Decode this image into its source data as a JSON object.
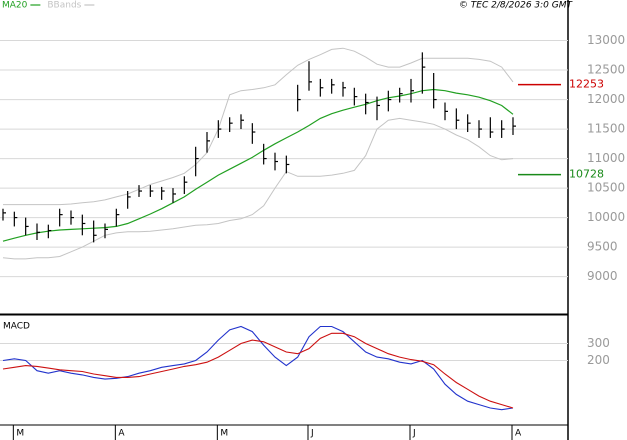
{
  "chart_data": [
    {
      "type": "ohlc",
      "source": "© TEC 2/8/2026 3:0 GMT",
      "ylim": [
        8400,
        13450
      ],
      "yticks": [
        9000,
        9500,
        10000,
        10500,
        11000,
        11500,
        12000,
        12500,
        13000
      ],
      "grid": true,
      "bar_color": "#000000",
      "high": [
        10150,
        10100,
        10000,
        9900,
        9880,
        10150,
        10120,
        10050,
        9950,
        9900,
        10150,
        10450,
        10550,
        10550,
        10520,
        10500,
        10700,
        11200,
        11450,
        11650,
        11700,
        11750,
        11600,
        11250,
        11100,
        11050,
        12250,
        12650,
        12350,
        12350,
        12300,
        12200,
        12100,
        12050,
        12150,
        12200,
        12350,
        12800,
        12450,
        11950,
        11850,
        11750,
        11650,
        11700,
        11650,
        11700
      ],
      "low": [
        9950,
        9850,
        9700,
        9620,
        9650,
        9850,
        9880,
        9700,
        9580,
        9650,
        9850,
        10150,
        10350,
        10350,
        10300,
        10250,
        10400,
        10700,
        11100,
        11350,
        11450,
        11500,
        11250,
        10900,
        10800,
        10750,
        11800,
        12150,
        12050,
        12100,
        12050,
        11900,
        11750,
        11650,
        11800,
        11950,
        11950,
        12100,
        11850,
        11650,
        11500,
        11450,
        11350,
        11350,
        11350,
        11400
      ],
      "close": [
        10080,
        10000,
        9850,
        9750,
        9780,
        10050,
        10000,
        9900,
        9700,
        9800,
        10050,
        10350,
        10450,
        10450,
        10450,
        10400,
        10600,
        11000,
        11300,
        11500,
        11600,
        11650,
        11450,
        11000,
        10950,
        10900,
        12000,
        12300,
        12200,
        12250,
        12200,
        12050,
        11950,
        11900,
        12000,
        12100,
        12150,
        12550,
        12000,
        11800,
        11650,
        11600,
        11500,
        11450,
        11500,
        11550
      ],
      "series": [
        {
          "name": "MA20",
          "color": "#22a022",
          "values": [
            9600,
            9650,
            9700,
            9740,
            9770,
            9790,
            9800,
            9810,
            9820,
            9830,
            9850,
            9900,
            9980,
            10060,
            10150,
            10250,
            10350,
            10480,
            10600,
            10720,
            10820,
            10920,
            11020,
            11140,
            11250,
            11350,
            11450,
            11560,
            11680,
            11760,
            11820,
            11870,
            11920,
            11980,
            12030,
            12060,
            12100,
            12150,
            12170,
            12150,
            12110,
            12080,
            12040,
            11980,
            11900,
            11750
          ]
        },
        {
          "name": "BBands",
          "color": "#c4c4c4",
          "upper": [
            10220,
            10220,
            10220,
            10220,
            10220,
            10220,
            10230,
            10250,
            10270,
            10300,
            10350,
            10400,
            10480,
            10560,
            10620,
            10680,
            10750,
            10900,
            11100,
            11500,
            12080,
            12150,
            12170,
            12200,
            12250,
            12420,
            12580,
            12680,
            12760,
            12850,
            12870,
            12820,
            12720,
            12600,
            12550,
            12550,
            12620,
            12700,
            12700,
            12700,
            12700,
            12700,
            12680,
            12650,
            12550,
            12300
          ],
          "lower": [
            9320,
            9300,
            9300,
            9320,
            9320,
            9340,
            9420,
            9500,
            9600,
            9700,
            9740,
            9760,
            9760,
            9770,
            9790,
            9810,
            9840,
            9870,
            9880,
            9900,
            9950,
            9980,
            10050,
            10200,
            10500,
            10780,
            10700,
            10700,
            10700,
            10720,
            10750,
            10800,
            11050,
            11500,
            11650,
            11680,
            11650,
            11620,
            11580,
            11500,
            11400,
            11320,
            11200,
            11050,
            10980,
            11000
          ]
        }
      ],
      "levels": [
        {
          "value": 12253,
          "color": "#cc0000"
        },
        {
          "value": 10728,
          "color": "#1a8a1a"
        }
      ]
    },
    {
      "type": "line",
      "title": "MACD",
      "ylim": [
        -180,
        450
      ],
      "yticks": [
        200,
        300
      ],
      "categories": [
        null,
        "M",
        null,
        null,
        null,
        null,
        null,
        null,
        null,
        null,
        "A",
        null,
        null,
        null,
        null,
        null,
        null,
        null,
        null,
        "M",
        null,
        null,
        null,
        null,
        null,
        null,
        null,
        "J",
        null,
        null,
        null,
        null,
        null,
        null,
        null,
        null,
        "J",
        null,
        null,
        null,
        null,
        null,
        null,
        null,
        null,
        "A"
      ],
      "series": [
        {
          "color": "#2233cc",
          "values": [
            200,
            210,
            200,
            140,
            125,
            140,
            125,
            115,
            100,
            90,
            95,
            105,
            125,
            140,
            160,
            170,
            180,
            200,
            250,
            320,
            380,
            400,
            370,
            290,
            220,
            170,
            220,
            340,
            400,
            400,
            370,
            310,
            250,
            220,
            210,
            190,
            180,
            200,
            150,
            60,
            0,
            -40,
            -60,
            -80,
            -90,
            -80
          ]
        },
        {
          "color": "#cc1111",
          "values": [
            150,
            160,
            170,
            165,
            155,
            145,
            140,
            135,
            120,
            110,
            100,
            100,
            105,
            120,
            135,
            150,
            165,
            175,
            190,
            220,
            260,
            300,
            320,
            310,
            280,
            250,
            240,
            270,
            330,
            360,
            360,
            340,
            300,
            270,
            240,
            220,
            205,
            195,
            175,
            120,
            70,
            30,
            -10,
            -40,
            -60,
            -80
          ]
        }
      ]
    }
  ]
}
